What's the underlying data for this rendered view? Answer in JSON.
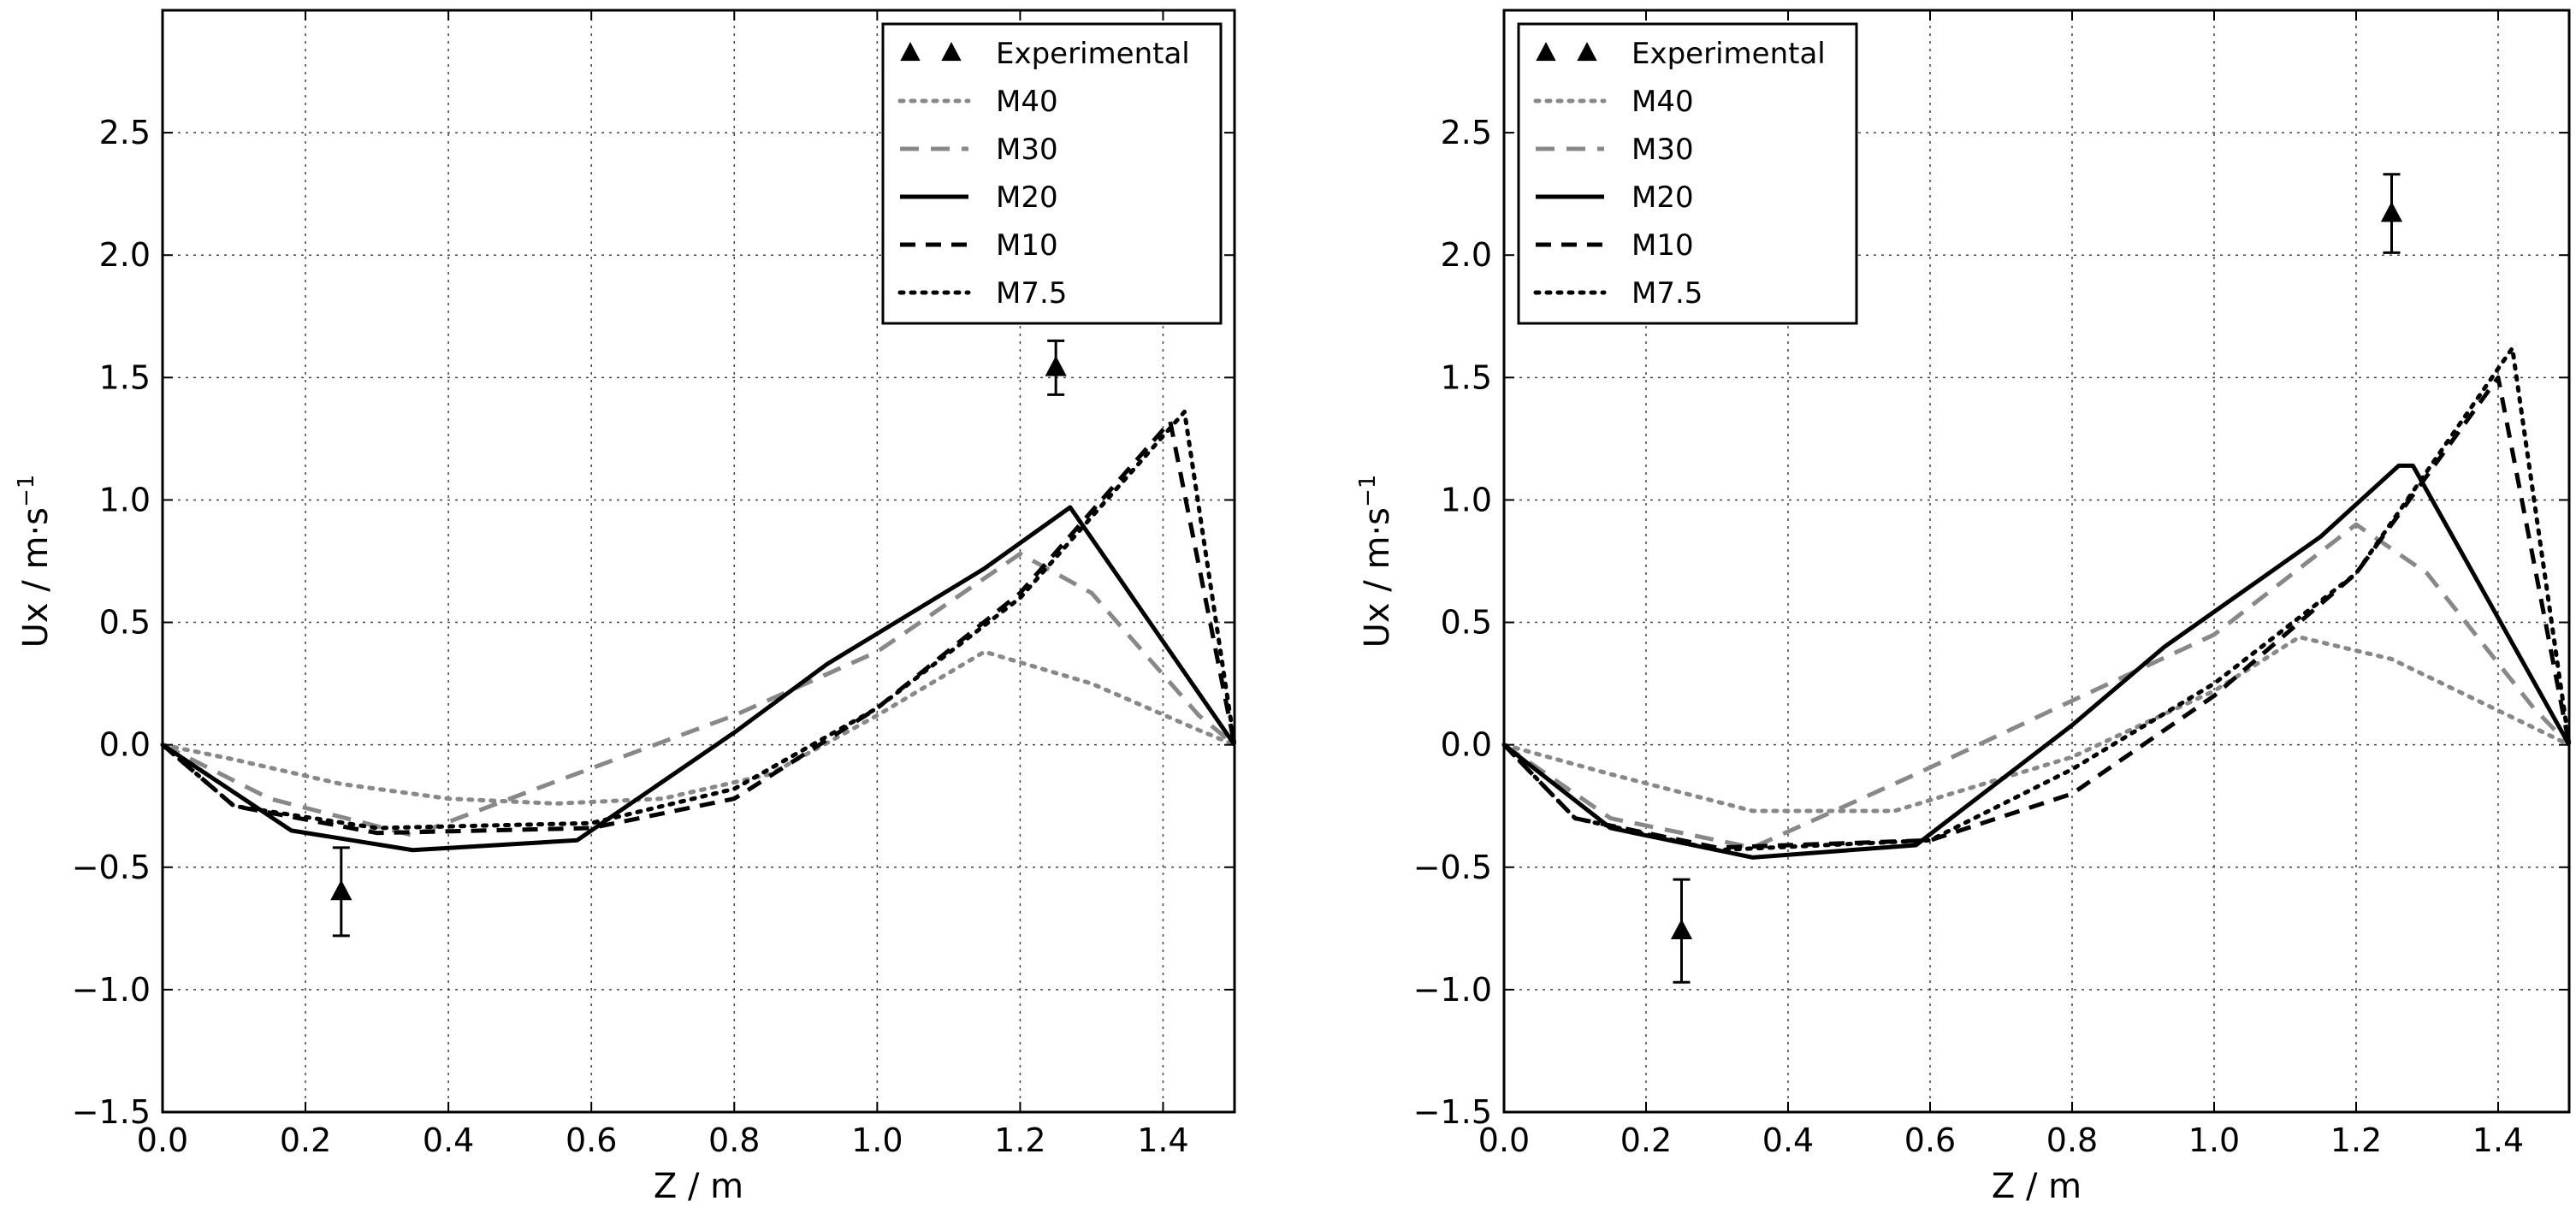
{
  "chart_data": [
    {
      "type": "line",
      "xlabel": "Z / m",
      "ylabel_main": "Ux / m",
      "ylabel_unit": "s",
      "ylabel_exp": "−1",
      "xlim": [
        0.0,
        1.5
      ],
      "ylim": [
        -1.5,
        3.0
      ],
      "xticks": [
        0.0,
        0.2,
        0.4,
        0.6,
        0.8,
        1.0,
        1.2,
        1.4
      ],
      "xtick_labels": [
        "0.0",
        "0.2",
        "0.4",
        "0.6",
        "0.8",
        "1.0",
        "1.2",
        "1.4"
      ],
      "yticks": [
        -1.5,
        -1.0,
        -0.5,
        0.0,
        0.5,
        1.0,
        1.5,
        2.0,
        2.5
      ],
      "ytick_labels": [
        "−1.5",
        "−1.0",
        "−0.5",
        "0.0",
        "0.5",
        "1.0",
        "1.5",
        "2.0",
        "2.5"
      ],
      "grid": true,
      "legend_position": "top-right",
      "experimental": {
        "name": "Experimental",
        "points": [
          {
            "x": 0.25,
            "y": -0.6,
            "err": 0.18
          },
          {
            "x": 1.25,
            "y": 1.54,
            "err": 0.11
          }
        ]
      },
      "series": [
        {
          "name": "M40",
          "style": "dotted-gray",
          "x": [
            0.0,
            0.1,
            0.25,
            0.4,
            0.55,
            0.7,
            0.85,
            1.0,
            1.15,
            1.3,
            1.45,
            1.5
          ],
          "y": [
            0.0,
            -0.06,
            -0.16,
            -0.22,
            -0.24,
            -0.22,
            -0.12,
            0.12,
            0.38,
            0.25,
            0.06,
            0.0
          ]
        },
        {
          "name": "M30",
          "style": "dashed-gray",
          "x": [
            0.0,
            0.15,
            0.35,
            0.55,
            0.8,
            1.0,
            1.2,
            1.3,
            1.45,
            1.5
          ],
          "y": [
            0.0,
            -0.22,
            -0.37,
            -0.15,
            0.12,
            0.38,
            0.78,
            0.62,
            0.12,
            0.0
          ]
        },
        {
          "name": "M20",
          "style": "solid",
          "x": [
            0.0,
            0.18,
            0.35,
            0.58,
            0.8,
            0.93,
            1.15,
            1.27,
            1.5
          ],
          "y": [
            0.0,
            -0.35,
            -0.43,
            -0.39,
            0.05,
            0.33,
            0.72,
            0.97,
            0.0
          ]
        },
        {
          "name": "M10",
          "style": "dashed-black",
          "x": [
            0.0,
            0.1,
            0.3,
            0.6,
            0.8,
            1.0,
            1.2,
            1.41,
            1.5
          ],
          "y": [
            0.0,
            -0.25,
            -0.36,
            -0.34,
            -0.22,
            0.15,
            0.62,
            1.32,
            0.0
          ]
        },
        {
          "name": "M7.5",
          "style": "dotted-black",
          "x": [
            0.0,
            0.1,
            0.3,
            0.6,
            0.8,
            1.0,
            1.2,
            1.43,
            1.5
          ],
          "y": [
            0.0,
            -0.25,
            -0.34,
            -0.32,
            -0.18,
            0.15,
            0.6,
            1.36,
            0.0
          ]
        }
      ]
    },
    {
      "type": "line",
      "xlabel": "Z / m",
      "ylabel_main": "Ux / m",
      "ylabel_unit": "s",
      "ylabel_exp": "−1",
      "xlim": [
        0.0,
        1.5
      ],
      "ylim": [
        -1.5,
        3.0
      ],
      "xticks": [
        0.0,
        0.2,
        0.4,
        0.6,
        0.8,
        1.0,
        1.2,
        1.4
      ],
      "xtick_labels": [
        "0.0",
        "0.2",
        "0.4",
        "0.6",
        "0.8",
        "1.0",
        "1.2",
        "1.4"
      ],
      "yticks": [
        -1.5,
        -1.0,
        -0.5,
        0.0,
        0.5,
        1.0,
        1.5,
        2.0,
        2.5
      ],
      "ytick_labels": [
        "−1.5",
        "−1.0",
        "−0.5",
        "0.0",
        "0.5",
        "1.0",
        "1.5",
        "2.0",
        "2.5"
      ],
      "grid": true,
      "legend_position": "top-left",
      "experimental": {
        "name": "Experimental",
        "points": [
          {
            "x": 0.25,
            "y": -0.76,
            "err": 0.21
          },
          {
            "x": 1.25,
            "y": 2.17,
            "err": 0.16
          }
        ]
      },
      "series": [
        {
          "name": "M40",
          "style": "dotted-gray",
          "x": [
            0.0,
            0.15,
            0.35,
            0.55,
            0.8,
            1.0,
            1.12,
            1.25,
            1.45,
            1.5
          ],
          "y": [
            0.0,
            -0.12,
            -0.27,
            -0.27,
            -0.05,
            0.22,
            0.44,
            0.35,
            0.07,
            0.0
          ]
        },
        {
          "name": "M30",
          "style": "dashed-gray",
          "x": [
            0.0,
            0.15,
            0.35,
            0.58,
            0.8,
            1.0,
            1.2,
            1.3,
            1.45,
            1.5
          ],
          "y": [
            0.0,
            -0.3,
            -0.42,
            -0.12,
            0.18,
            0.45,
            0.9,
            0.7,
            0.15,
            0.0
          ]
        },
        {
          "name": "M20",
          "style": "solid",
          "x": [
            0.0,
            0.15,
            0.35,
            0.58,
            0.8,
            0.93,
            1.15,
            1.26,
            1.28,
            1.5
          ],
          "y": [
            0.0,
            -0.34,
            -0.46,
            -0.41,
            0.08,
            0.4,
            0.85,
            1.14,
            1.14,
            0.0
          ]
        },
        {
          "name": "M10",
          "style": "dashed-black",
          "x": [
            0.0,
            0.1,
            0.3,
            0.6,
            0.8,
            1.0,
            1.2,
            1.4,
            1.5
          ],
          "y": [
            0.0,
            -0.3,
            -0.42,
            -0.39,
            -0.2,
            0.2,
            0.7,
            1.5,
            0.0
          ]
        },
        {
          "name": "M7.5",
          "style": "dotted-black",
          "x": [
            0.0,
            0.1,
            0.3,
            0.6,
            0.8,
            1.0,
            1.2,
            1.42,
            1.5
          ],
          "y": [
            0.0,
            -0.3,
            -0.43,
            -0.39,
            -0.1,
            0.25,
            0.7,
            1.62,
            0.0
          ]
        }
      ]
    }
  ],
  "legend": {
    "entries": [
      "Experimental",
      "M40",
      "M30",
      "M20",
      "M10",
      "M7.5"
    ]
  },
  "colors": {
    "black": "#000000",
    "gray": "#888888",
    "grid": "#444444"
  }
}
